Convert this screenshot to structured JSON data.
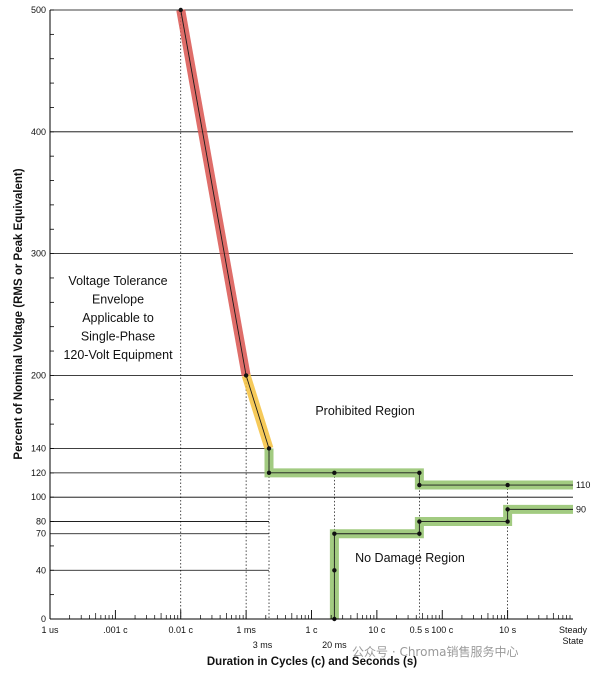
{
  "chart_data": {
    "type": "line",
    "ylabel": "Percent of Nominal Voltage (RMS or Peak Equivalent)",
    "xlabel": "Duration in Cycles (c) and Seconds (s)",
    "ylim": [
      0,
      500
    ],
    "y_ticks": [
      0,
      40,
      70,
      80,
      100,
      120,
      140,
      200,
      300,
      400,
      500
    ],
    "y_major_lines": [
      100,
      200,
      300,
      400,
      500
    ],
    "y_minor_lines": [
      40,
      70,
      80,
      120,
      140
    ],
    "x_scale": "log",
    "x_ticks": [
      {
        "pos": 0,
        "label": "1 us"
      },
      {
        "pos": 1,
        "label": ".001 c"
      },
      {
        "pos": 2,
        "label": "0.01 c"
      },
      {
        "pos": 3,
        "label": "1 ms"
      },
      {
        "pos": 3.25,
        "label": "3 ms"
      },
      {
        "pos": 4,
        "label": "1 c"
      },
      {
        "pos": 4.35,
        "label": "20 ms"
      },
      {
        "pos": 5,
        "label": "10 c"
      },
      {
        "pos": 5.65,
        "label": "0.5 s"
      },
      {
        "pos": 6,
        "label": "100 c"
      },
      {
        "pos": 7,
        "label": "10 s"
      },
      {
        "pos": 8,
        "label": "Steady State"
      }
    ],
    "series": [
      {
        "segment": "overvoltage_red",
        "color": "#d9534f",
        "points": [
          [
            2,
            500
          ],
          [
            3,
            200
          ]
        ]
      },
      {
        "segment": "overvoltage_yellow",
        "color": "#f5c13d",
        "points": [
          [
            3,
            200
          ],
          [
            3.35,
            140
          ]
        ]
      },
      {
        "segment": "overvoltage_green",
        "color": "#92c26b",
        "points": [
          [
            3.35,
            140
          ],
          [
            3.35,
            120
          ],
          [
            5.65,
            120
          ],
          [
            5.65,
            110
          ],
          [
            8,
            110
          ]
        ]
      },
      {
        "segment": "undervoltage_green",
        "color": "#92c26b",
        "points": [
          [
            4.35,
            0
          ],
          [
            4.35,
            70
          ],
          [
            5.65,
            70
          ],
          [
            5.65,
            80
          ],
          [
            7,
            80
          ],
          [
            7,
            90
          ],
          [
            8,
            90
          ]
        ]
      }
    ],
    "markers": [
      [
        2,
        500
      ],
      [
        3,
        200
      ],
      [
        3.35,
        140
      ],
      [
        3.35,
        120
      ],
      [
        4.35,
        120
      ],
      [
        5.65,
        120
      ],
      [
        5.65,
        110
      ],
      [
        7,
        110
      ],
      [
        4.35,
        0
      ],
      [
        4.35,
        40
      ],
      [
        4.35,
        70
      ],
      [
        5.65,
        70
      ],
      [
        5.65,
        80
      ],
      [
        7,
        80
      ],
      [
        7,
        90
      ]
    ],
    "line_labels": [
      {
        "text": "110",
        "y": 110
      },
      {
        "text": "90",
        "y": 90
      }
    ],
    "annotations": {
      "envelope": [
        "Voltage Tolerance",
        "Envelope",
        "Applicable to",
        "Single-Phase",
        "120-Volt Equipment"
      ],
      "prohibited": "Prohibited Region",
      "no_damage": "No Damage Region"
    },
    "watermark": "公众号 · Chroma销售服务中心"
  }
}
